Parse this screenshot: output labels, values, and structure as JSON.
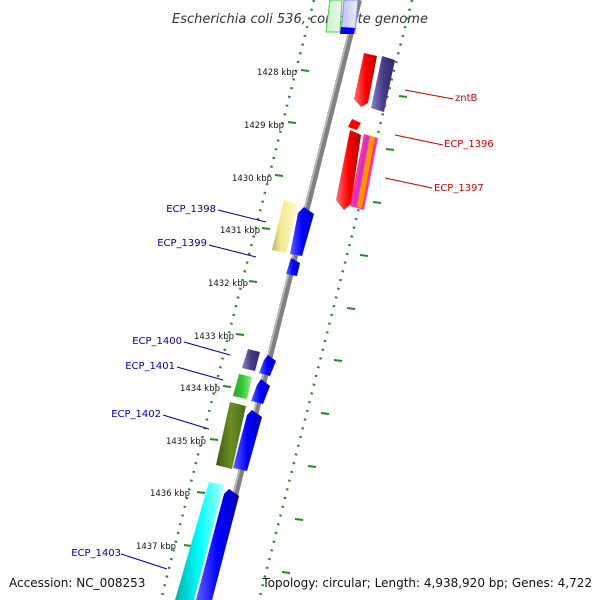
{
  "title": "Escherichia coli 536, complete genome",
  "accession": "Accession: NC_008253",
  "summary": "Topology: circular; Length: 4,938,920 bp; Genes: 4,722",
  "colors": {
    "backbone": "#808080",
    "forward_gene": "#0000ff",
    "reverse_gene": "#ff0000",
    "tick": "#228B22",
    "label_forward": "#000099",
    "label_reverse": "#cc0000"
  },
  "ticks": [
    {
      "label": "1428 kbp"
    },
    {
      "label": "1429 kbp"
    },
    {
      "label": "1430 kbp"
    },
    {
      "label": "1431 kbp"
    },
    {
      "label": "1432 kbp"
    },
    {
      "label": "1433 kbp"
    },
    {
      "label": "1434 kbp"
    },
    {
      "label": "1435 kbp"
    },
    {
      "label": "1436 kbp"
    },
    {
      "label": "1437 kbp"
    }
  ],
  "gene_labels": [
    {
      "text": "zntB",
      "strand": "reverse"
    },
    {
      "text": "ECP_1396",
      "strand": "reverse"
    },
    {
      "text": "ECP_1397",
      "strand": "reverse"
    },
    {
      "text": "ECP_1398",
      "strand": "forward"
    },
    {
      "text": "ECP_1399",
      "strand": "forward"
    },
    {
      "text": "ECP_1400",
      "strand": "forward"
    },
    {
      "text": "ECP_1401",
      "strand": "forward"
    },
    {
      "text": "ECP_1402",
      "strand": "forward"
    },
    {
      "text": "ECP_1403",
      "strand": "forward"
    }
  ]
}
